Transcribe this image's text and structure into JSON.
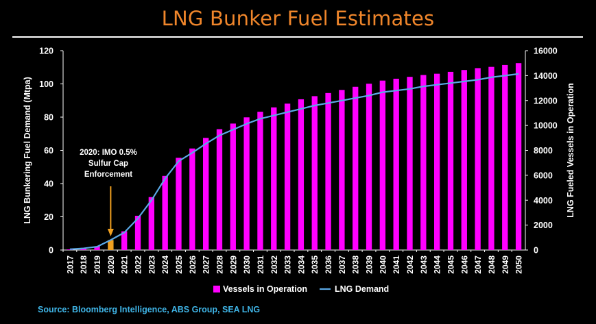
{
  "chart_data": {
    "type": "bar+line",
    "title": "LNG Bunker Fuel Estimates",
    "categories": [
      "2017",
      "2018",
      "2019",
      "2020",
      "2021",
      "2022",
      "2023",
      "2024",
      "2025",
      "2026",
      "2027",
      "2028",
      "2029",
      "2030",
      "2031",
      "2032",
      "2033",
      "2034",
      "2035",
      "2036",
      "2037",
      "2038",
      "2039",
      "2040",
      "2041",
      "2042",
      "2043",
      "2044",
      "2045",
      "2046",
      "2047",
      "2048",
      "2049",
      "2050"
    ],
    "ylabel_left": "LNG Bunkering Fuel Demand (Mtpa)",
    "ylabel_right": "LNG Fueled Vessels in Operation",
    "ylim_left": [
      0,
      120
    ],
    "yticks_left": [
      "0",
      "20",
      "40",
      "60",
      "80",
      "100",
      "120"
    ],
    "ylim_right": [
      0,
      16000
    ],
    "yticks_right": [
      "0",
      "2000",
      "4000",
      "6000",
      "8000",
      "10000",
      "12000",
      "14000",
      "16000"
    ],
    "series": [
      {
        "name": "Vessels in Operation",
        "type": "bar",
        "axis": "right",
        "color": "#ff00ff",
        "values": [
          50,
          130,
          300,
          800,
          1500,
          2750,
          4250,
          5950,
          7400,
          8150,
          9000,
          9700,
          10150,
          10650,
          11100,
          11450,
          11750,
          12100,
          12350,
          12600,
          12850,
          13100,
          13350,
          13600,
          13750,
          13900,
          14050,
          14150,
          14300,
          14450,
          14600,
          14700,
          14850,
          15000
        ]
      },
      {
        "name": "LNG Demand",
        "type": "line",
        "axis": "left",
        "color": "#5aa8e6",
        "values": [
          0.5,
          1,
          2,
          6,
          10.5,
          19,
          30,
          43,
          53.5,
          58.5,
          64,
          69,
          72.5,
          76,
          79,
          81,
          83,
          85,
          87,
          88.5,
          90,
          91.5,
          93,
          95,
          96,
          97,
          98.5,
          99.5,
          100.5,
          101.5,
          102.5,
          104,
          105,
          106
        ]
      }
    ],
    "highlight": {
      "category": "2020",
      "color": "#f0a020",
      "annotation": [
        "2020: IMO 0.5%",
        "Sulfur Cap",
        "Enforcement"
      ]
    },
    "legend": {
      "placement": "bottom",
      "items": [
        "Vessels in Operation",
        "LNG Demand"
      ]
    },
    "grid": false
  },
  "source": "Source: Bloomberg Intelligence, ABS Group, SEA LNG"
}
